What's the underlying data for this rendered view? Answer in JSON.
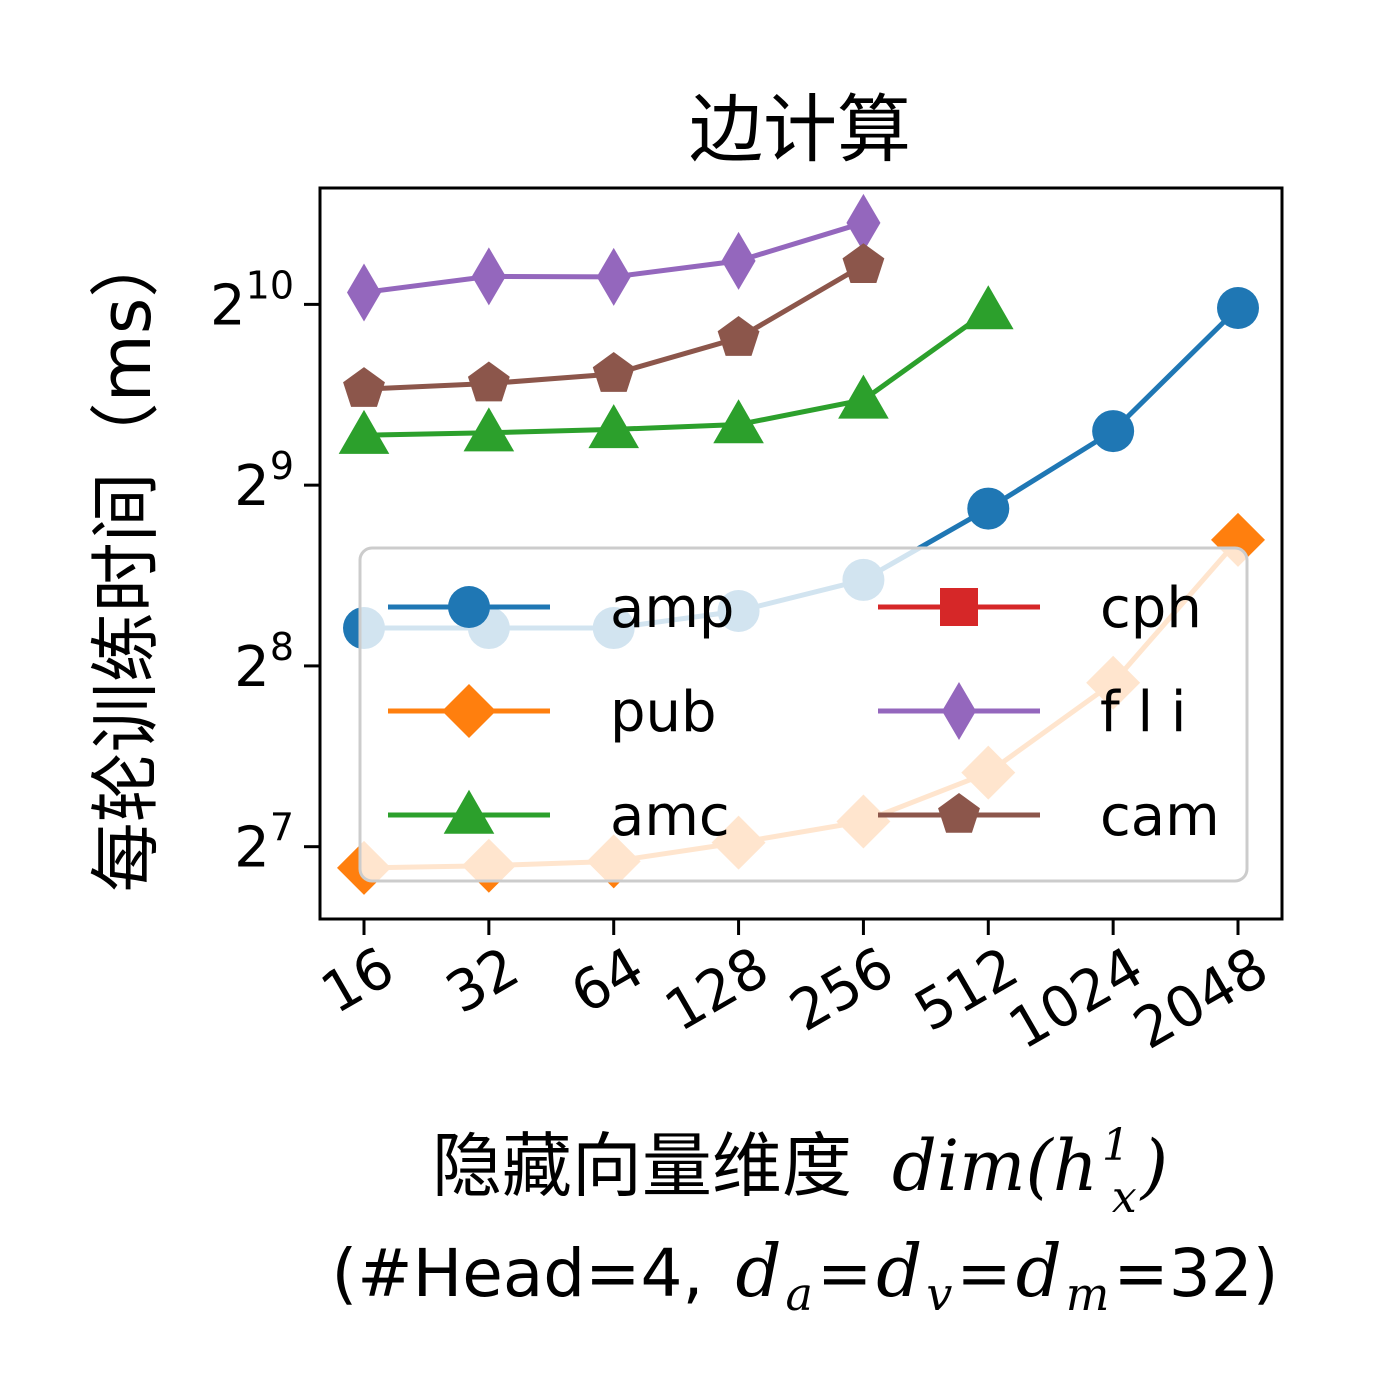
{
  "chart_data": {
    "type": "line",
    "title": "边计算",
    "xlabel": {
      "text": "隐藏向量维度",
      "math": "dim(h",
      "math_sup": "1",
      "math_sub": "x",
      "math_close": ")"
    },
    "xlabel_line2": {
      "open": "(#Head=4,",
      "d1": "d",
      "s1": "a",
      "eq1": "=",
      "d2": "d",
      "s2": "v",
      "eq2": "=",
      "d3": "d",
      "s3": "m",
      "tail": "=32)"
    },
    "ylabel": "每轮训练时间（ms）",
    "x_scale": "log2",
    "y_scale": "log2",
    "categories": [
      "16",
      "32",
      "64",
      "128",
      "256",
      "512",
      "1024",
      "2048"
    ],
    "y_ticks": [
      {
        "base": "2",
        "exp": "7",
        "value": 128
      },
      {
        "base": "2",
        "exp": "8",
        "value": 256
      },
      {
        "base": "2",
        "exp": "9",
        "value": 512
      },
      {
        "base": "2",
        "exp": "10",
        "value": 1024
      }
    ],
    "ylim": [
      97,
      1600
    ],
    "legend_position": "center-bottom",
    "legend_columns": 2,
    "series": [
      {
        "name": "amp",
        "color": "#1f77b4",
        "marker": "circle",
        "x": [
          16,
          32,
          64,
          128,
          256,
          512,
          1024,
          2048
        ],
        "values": [
          296,
          296,
          296,
          316,
          356,
          468,
          630,
          1010
        ]
      },
      {
        "name": "pub",
        "color": "#ff7f0e",
        "marker": "diamond",
        "x": [
          16,
          32,
          64,
          128,
          256,
          512,
          1024,
          2048
        ],
        "values": [
          118,
          119,
          121,
          130,
          141,
          170,
          240,
          415
        ]
      },
      {
        "name": "amc",
        "color": "#2ca02c",
        "marker": "triangle",
        "x": [
          16,
          32,
          64,
          128,
          256,
          512
        ],
        "values": [
          620,
          626,
          634,
          646,
          710,
          1000
        ]
      },
      {
        "name": "cph",
        "color": "#d62728",
        "marker": "square",
        "x": [],
        "values": []
      },
      {
        "name": "f l i",
        "color": "#9467bd",
        "marker": "thin_diamond",
        "x": [
          16,
          32,
          64,
          128,
          256
        ],
        "values": [
          1072,
          1140,
          1138,
          1210,
          1400
        ]
      },
      {
        "name": "cam",
        "color": "#8c564b",
        "marker": "pentagon",
        "x": [
          16,
          32,
          64,
          128,
          256
        ],
        "values": [
          740,
          756,
          784,
          900,
          1190
        ]
      }
    ]
  }
}
